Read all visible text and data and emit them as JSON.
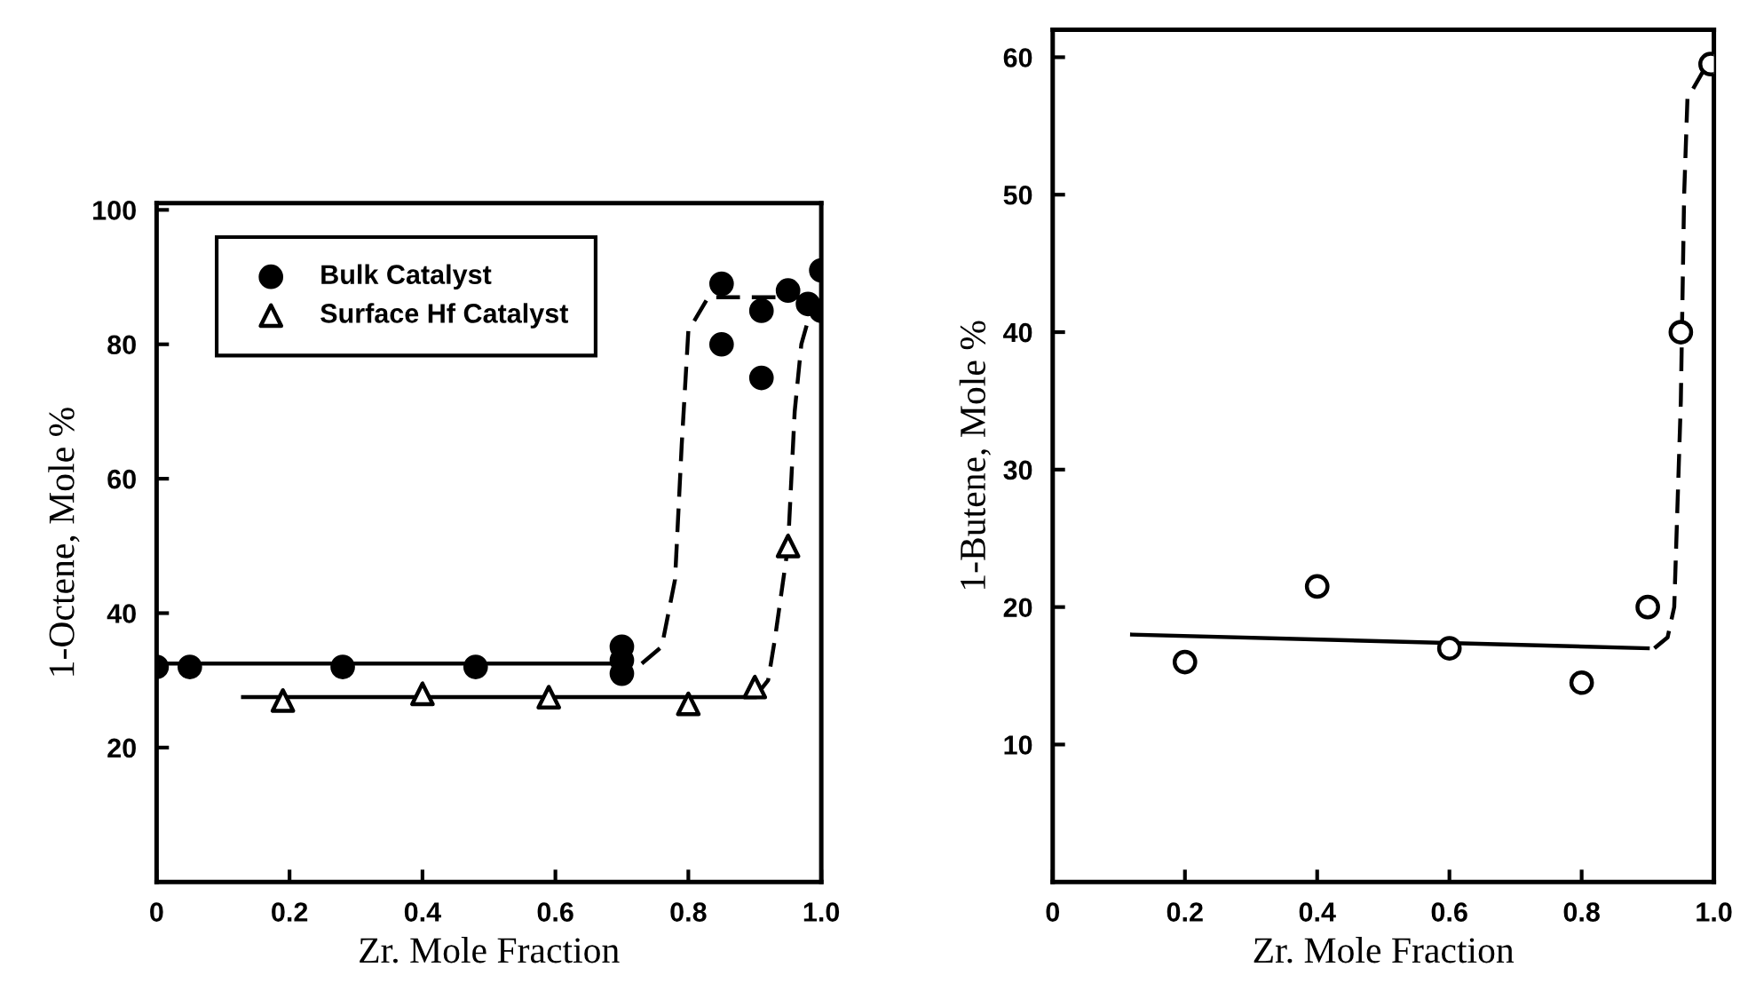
{
  "chart_data": [
    {
      "type": "scatter",
      "xlabel": "Zr. Mole Fraction",
      "ylabel": "1-Octene, Mole %",
      "xlim": [
        0,
        1.0
      ],
      "ylim": [
        0,
        101
      ],
      "xticks": [
        0,
        0.2,
        0.4,
        0.6,
        0.8,
        {
          "value": 1.0,
          "label": "1.0"
        }
      ],
      "yticks": [
        20,
        40,
        60,
        80,
        100
      ],
      "grid": false,
      "legend": "top left",
      "series": [
        {
          "name": "Bulk Catalyst",
          "color": "#000000",
          "marker": "circle",
          "x": [
            0,
            0.05,
            0.28,
            0.48,
            0.7,
            0.7,
            0.7,
            0.85,
            0.85,
            0.91,
            0.91,
            0.95,
            0.97,
            0.98,
            1.0,
            1.0
          ],
          "values": [
            32,
            32,
            32,
            32,
            35,
            31,
            33,
            89,
            80,
            85,
            75,
            88,
            null,
            86,
            91,
            85
          ]
        },
        {
          "name": "Surface Hf Catalyst",
          "color": "#000000",
          "marker": "triangle",
          "x": [
            0.19,
            0.4,
            0.59,
            0.8,
            0.9,
            0.95
          ],
          "values": [
            27,
            28,
            27.5,
            26.5,
            29,
            50
          ]
        },
        {
          "type": "line",
          "color": "#000000",
          "line_style": "solid",
          "marker": "none",
          "x": [
            0,
            0.7
          ],
          "values": [
            32.5,
            32.5
          ]
        },
        {
          "type": "line",
          "color": "#000000",
          "line_style": "dashed",
          "marker": "none",
          "x": [
            0.73,
            0.76,
            0.78,
            0.79,
            0.8,
            0.83,
            0.87,
            1.0
          ],
          "values": [
            32.5,
            35,
            45,
            65,
            82,
            87,
            87,
            87
          ]
        },
        {
          "type": "line",
          "color": "#000000",
          "line_style": "solid",
          "marker": "none",
          "x": [
            0.13,
            0.9
          ],
          "values": [
            27.5,
            27.5
          ]
        },
        {
          "type": "line",
          "color": "#000000",
          "line_style": "dashed",
          "marker": "none",
          "x": [
            0.9,
            0.92,
            0.93,
            0.95,
            0.96,
            0.97,
            0.99
          ],
          "values": [
            27.5,
            30,
            36,
            50,
            70,
            80,
            87
          ]
        }
      ]
    },
    {
      "type": "scatter",
      "xlabel": "Zr. Mole Fraction",
      "ylabel": "1-Butene, Mole %",
      "xlim": [
        0,
        1.0
      ],
      "ylim": [
        0,
        62
      ],
      "xticks": [
        0,
        0.2,
        0.4,
        0.6,
        0.8,
        {
          "value": 1.0,
          "label": "1.0"
        }
      ],
      "yticks": [
        10,
        20,
        30,
        40,
        50,
        60
      ],
      "grid": false,
      "series": [
        {
          "color": "#000000",
          "marker": "circle",
          "x": [
            0.2,
            0.4,
            0.6,
            0.8,
            0.9,
            0.95,
            0.995
          ],
          "values": [
            16,
            21.5,
            17,
            14.5,
            20,
            40,
            59.5
          ]
        },
        {
          "type": "line",
          "color": "#000000",
          "line_style": "solid",
          "marker": "none",
          "x": [
            0.12,
            0.9
          ],
          "values": [
            18,
            17
          ]
        },
        {
          "type": "line",
          "color": "#000000",
          "line_style": "dashed",
          "marker": "none",
          "x": [
            0.91,
            0.93,
            0.94,
            0.95,
            0.955,
            0.96,
            0.99
          ],
          "values": [
            17,
            17.8,
            20,
            35,
            50,
            57,
            59.5
          ]
        }
      ]
    }
  ]
}
